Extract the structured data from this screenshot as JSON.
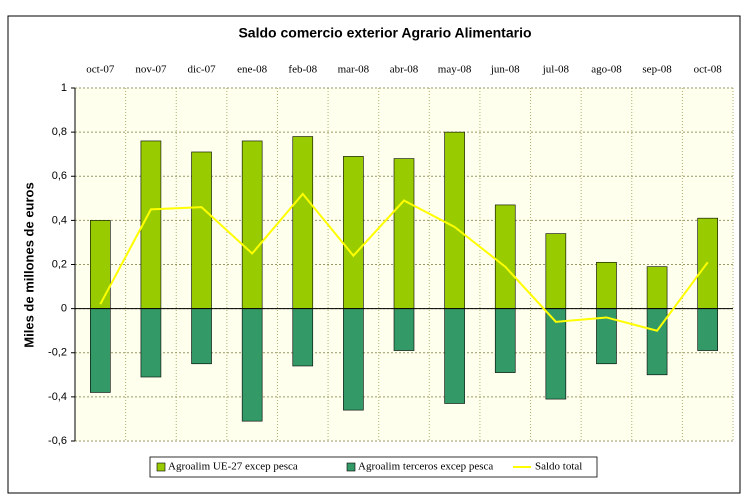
{
  "chart_data": {
    "type": "bar_line",
    "title": "Saldo comercio exterior Agrario Alimentario",
    "y_label": "Miles de millones de euros",
    "categories": [
      "oct-07",
      "nov-07",
      "dic-07",
      "ene-08",
      "feb-08",
      "mar-08",
      "abr-08",
      "may-08",
      "jun-08",
      "jul-08",
      "ago-08",
      "sep-08",
      "oct-08"
    ],
    "series": [
      {
        "name": "Agroalim UE-27 excep pesca",
        "color": "#99cc00",
        "kind": "bar",
        "values": [
          0.4,
          0.76,
          0.71,
          0.76,
          0.78,
          0.69,
          0.68,
          0.8,
          0.47,
          0.34,
          0.21,
          0.19,
          0.41
        ]
      },
      {
        "name": "Agroalim terceros excep pesca",
        "color": "#339966",
        "kind": "bar",
        "values": [
          -0.38,
          -0.31,
          -0.25,
          -0.51,
          -0.26,
          -0.46,
          -0.19,
          -0.43,
          -0.29,
          -0.41,
          -0.25,
          -0.3,
          -0.19
        ]
      },
      {
        "name": "Saldo total",
        "color": "#ffff00",
        "kind": "line",
        "values": [
          0.02,
          0.45,
          0.46,
          0.25,
          0.52,
          0.24,
          0.49,
          0.37,
          0.19,
          -0.06,
          -0.04,
          -0.1,
          0.21
        ]
      }
    ],
    "ylim": [
      -0.6,
      1
    ],
    "yticks": [
      {
        "value": -0.6,
        "label": "-0,6"
      },
      {
        "value": -0.4,
        "label": "-0,4"
      },
      {
        "value": -0.2,
        "label": "-0,2"
      },
      0,
      {
        "value": 0.2,
        "label": "0,2"
      },
      {
        "value": 0.4,
        "label": "0,4"
      },
      {
        "value": 0.6,
        "label": "0,6"
      },
      {
        "value": 0.8,
        "label": "0,8"
      },
      1
    ],
    "grid": true,
    "legend": "bottom"
  }
}
